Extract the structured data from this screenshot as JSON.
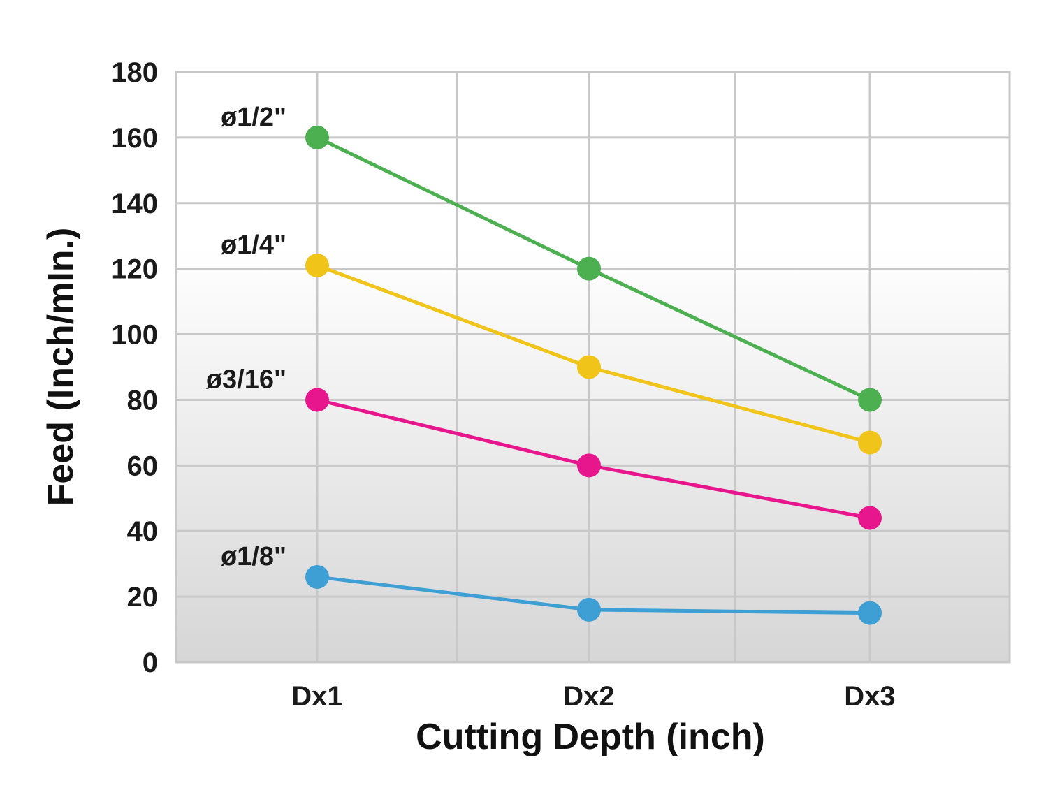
{
  "chart_data": {
    "type": "line",
    "title": "",
    "xlabel": "Cutting Depth (inch)",
    "ylabel": "Feed (Inch/mIn.)",
    "categories": [
      "Dx1",
      "Dx2",
      "Dx3"
    ],
    "ylim": [
      0,
      180
    ],
    "yticks": [
      0,
      20,
      40,
      60,
      80,
      100,
      120,
      140,
      160,
      180
    ],
    "grid": true,
    "legend": "inline labels at left of each series",
    "series": [
      {
        "name": "ø1/2\"",
        "color": "#4caf50",
        "values": [
          160,
          120,
          80
        ]
      },
      {
        "name": "ø1/4\"",
        "color": "#f0c419",
        "values": [
          121,
          90,
          67
        ]
      },
      {
        "name": "ø3/16\"",
        "color": "#e8168c",
        "values": [
          80,
          60,
          44
        ]
      },
      {
        "name": "ø1/8\"",
        "color": "#3d9fd3",
        "values": [
          26,
          16,
          15
        ]
      }
    ]
  }
}
